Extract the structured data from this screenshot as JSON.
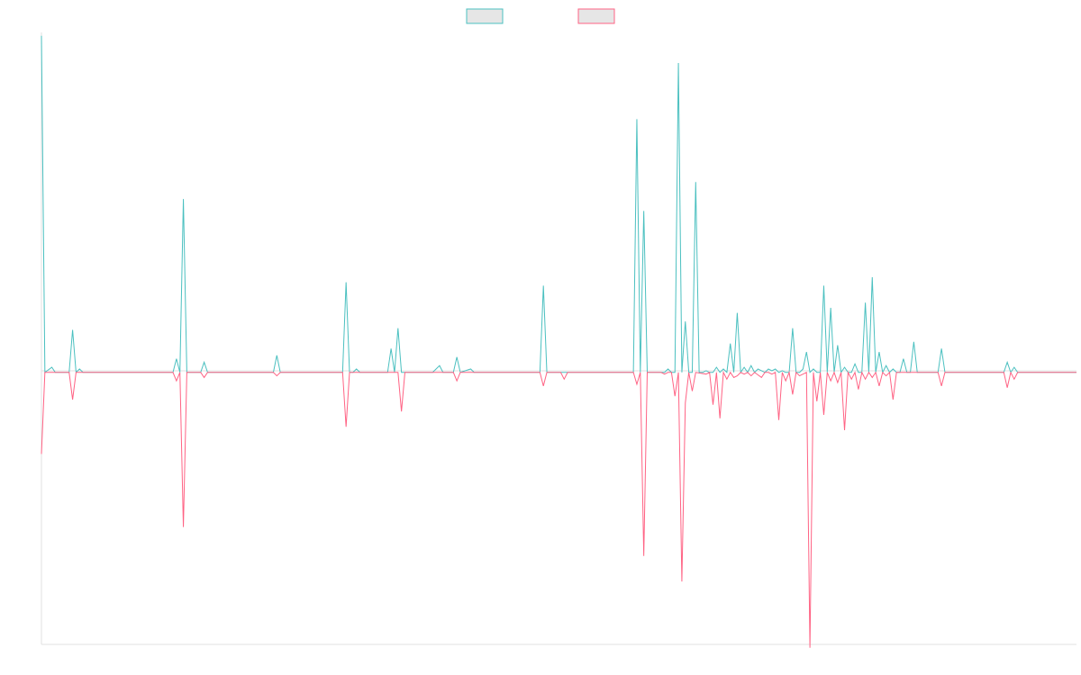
{
  "chart_data": {
    "type": "line",
    "title": "",
    "xlabel": "",
    "ylabel": "",
    "grid": false,
    "legend": "top-center",
    "x_count": 300,
    "ylim": [
      -1.6,
      2.0
    ],
    "series": [
      {
        "color": "#4bc0c0",
        "fill": "#e6e6e6",
        "points": [
          [
            0,
            1.98
          ],
          [
            1,
            0
          ],
          [
            3,
            0.03
          ],
          [
            4,
            0
          ],
          [
            8,
            0
          ],
          [
            9,
            0.25
          ],
          [
            10,
            0
          ],
          [
            11,
            0.02
          ],
          [
            12,
            0
          ],
          [
            38,
            0
          ],
          [
            39,
            0.08
          ],
          [
            40,
            0
          ],
          [
            41,
            1.02
          ],
          [
            42,
            0
          ],
          [
            46,
            0
          ],
          [
            47,
            0.06
          ],
          [
            48,
            0
          ],
          [
            67,
            0
          ],
          [
            68,
            0.1
          ],
          [
            69,
            0
          ],
          [
            87,
            0
          ],
          [
            88,
            0.53
          ],
          [
            89,
            0
          ],
          [
            90,
            0
          ],
          [
            91,
            0.02
          ],
          [
            92,
            0
          ],
          [
            100,
            0
          ],
          [
            101,
            0.14
          ],
          [
            102,
            0
          ],
          [
            103,
            0.26
          ],
          [
            104,
            0
          ],
          [
            113,
            0
          ],
          [
            114,
            0.02
          ],
          [
            115,
            0.04
          ],
          [
            116,
            0
          ],
          [
            119,
            0
          ],
          [
            120,
            0.09
          ],
          [
            121,
            0
          ],
          [
            124,
            0.02
          ],
          [
            125,
            0
          ],
          [
            127,
            0
          ],
          [
            128,
            0
          ],
          [
            144,
            0
          ],
          [
            145,
            0.51
          ],
          [
            146,
            0
          ],
          [
            171,
            0
          ],
          [
            172,
            1.49
          ],
          [
            173,
            0
          ],
          [
            174,
            0.95
          ],
          [
            175,
            0
          ],
          [
            180,
            0
          ],
          [
            181,
            0.02
          ],
          [
            182,
            0
          ],
          [
            183,
            0
          ],
          [
            184,
            1.82
          ],
          [
            185,
            0
          ],
          [
            186,
            0.3
          ],
          [
            187,
            0
          ],
          [
            188,
            0
          ],
          [
            189,
            1.12
          ],
          [
            190,
            0
          ],
          [
            191,
            0
          ],
          [
            192,
            0.01
          ],
          [
            193,
            0
          ],
          [
            194,
            0
          ],
          [
            195,
            0.03
          ],
          [
            196,
            0
          ],
          [
            197,
            0.02
          ],
          [
            198,
            0
          ],
          [
            199,
            0.17
          ],
          [
            200,
            0
          ],
          [
            201,
            0.35
          ],
          [
            202,
            0
          ],
          [
            203,
            0.03
          ],
          [
            204,
            0
          ],
          [
            205,
            0.04
          ],
          [
            206,
            0
          ],
          [
            207,
            0.02
          ],
          [
            208,
            0.01
          ],
          [
            209,
            0
          ],
          [
            210,
            0.02
          ],
          [
            211,
            0.01
          ],
          [
            212,
            0.02
          ],
          [
            213,
            0
          ],
          [
            214,
            0.01
          ],
          [
            215,
            0
          ],
          [
            216,
            0
          ],
          [
            217,
            0.26
          ],
          [
            218,
            0
          ],
          [
            219,
            0
          ],
          [
            220,
            0.02
          ],
          [
            221,
            0.12
          ],
          [
            222,
            0
          ],
          [
            223,
            0.02
          ],
          [
            224,
            0
          ],
          [
            225,
            0
          ],
          [
            226,
            0.51
          ],
          [
            227,
            0
          ],
          [
            228,
            0.38
          ],
          [
            229,
            0
          ],
          [
            230,
            0.16
          ],
          [
            231,
            0
          ],
          [
            232,
            0.03
          ],
          [
            233,
            0
          ],
          [
            234,
            0
          ],
          [
            235,
            0.05
          ],
          [
            236,
            0
          ],
          [
            237,
            0
          ],
          [
            238,
            0.41
          ],
          [
            239,
            0
          ],
          [
            240,
            0.56
          ],
          [
            241,
            0
          ],
          [
            242,
            0.12
          ],
          [
            243,
            0
          ],
          [
            244,
            0.04
          ],
          [
            245,
            0
          ],
          [
            246,
            0.02
          ],
          [
            247,
            0
          ],
          [
            248,
            0
          ],
          [
            249,
            0.08
          ],
          [
            250,
            0
          ],
          [
            251,
            0
          ],
          [
            252,
            0.18
          ],
          [
            253,
            0
          ],
          [
            254,
            0
          ],
          [
            259,
            0
          ],
          [
            260,
            0.14
          ],
          [
            261,
            0
          ],
          [
            278,
            0
          ],
          [
            279,
            0.06
          ],
          [
            280,
            0
          ],
          [
            281,
            0.03
          ],
          [
            282,
            0
          ],
          [
            299,
            0
          ]
        ]
      },
      {
        "color": "#ff6384",
        "fill": "#e6e6e6",
        "points": [
          [
            0,
            -0.48
          ],
          [
            1,
            0
          ],
          [
            8,
            0
          ],
          [
            9,
            -0.16
          ],
          [
            10,
            0
          ],
          [
            38,
            0
          ],
          [
            39,
            -0.05
          ],
          [
            40,
            0
          ],
          [
            41,
            -0.91
          ],
          [
            42,
            0
          ],
          [
            46,
            0
          ],
          [
            47,
            -0.03
          ],
          [
            48,
            0
          ],
          [
            67,
            0
          ],
          [
            68,
            -0.02
          ],
          [
            69,
            0
          ],
          [
            87,
            0
          ],
          [
            88,
            -0.32
          ],
          [
            89,
            0
          ],
          [
            103,
            0
          ],
          [
            104,
            -0.23
          ],
          [
            105,
            0
          ],
          [
            119,
            0
          ],
          [
            120,
            -0.05
          ],
          [
            121,
            0
          ],
          [
            144,
            0
          ],
          [
            145,
            -0.08
          ],
          [
            146,
            0
          ],
          [
            150,
            0
          ],
          [
            151,
            -0.04
          ],
          [
            152,
            0
          ],
          [
            171,
            0
          ],
          [
            172,
            -0.07
          ],
          [
            173,
            0
          ],
          [
            174,
            -1.08
          ],
          [
            175,
            0
          ],
          [
            179,
            0
          ],
          [
            180,
            -0.01
          ],
          [
            181,
            0
          ],
          [
            182,
            0
          ],
          [
            183,
            -0.14
          ],
          [
            184,
            0
          ],
          [
            185,
            -1.23
          ],
          [
            186,
            -0.18
          ],
          [
            187,
            0
          ],
          [
            188,
            -0.11
          ],
          [
            189,
            0
          ],
          [
            192,
            -0.01
          ],
          [
            193,
            0
          ],
          [
            194,
            -0.19
          ],
          [
            195,
            0
          ],
          [
            196,
            -0.27
          ],
          [
            197,
            0
          ],
          [
            198,
            -0.04
          ],
          [
            199,
            0
          ],
          [
            200,
            -0.03
          ],
          [
            201,
            -0.02
          ],
          [
            202,
            0
          ],
          [
            203,
            -0.01
          ],
          [
            204,
            0
          ],
          [
            205,
            -0.02
          ],
          [
            206,
            0
          ],
          [
            208,
            -0.03
          ],
          [
            209,
            0
          ],
          [
            210,
            0
          ],
          [
            211,
            -0.01
          ],
          [
            212,
            0
          ],
          [
            213,
            -0.28
          ],
          [
            214,
            0
          ],
          [
            215,
            -0.05
          ],
          [
            216,
            0
          ],
          [
            217,
            -0.13
          ],
          [
            218,
            0
          ],
          [
            219,
            -0.02
          ],
          [
            220,
            -0.01
          ],
          [
            221,
            0
          ],
          [
            222,
            -1.62
          ],
          [
            223,
            0
          ],
          [
            224,
            -0.17
          ],
          [
            225,
            0
          ],
          [
            226,
            -0.25
          ],
          [
            227,
            0
          ],
          [
            228,
            -0.05
          ],
          [
            229,
            0
          ],
          [
            230,
            -0.06
          ],
          [
            231,
            0
          ],
          [
            232,
            -0.34
          ],
          [
            233,
            0
          ],
          [
            234,
            -0.04
          ],
          [
            235,
            0
          ],
          [
            236,
            -0.1
          ],
          [
            237,
            0
          ],
          [
            238,
            -0.04
          ],
          [
            239,
            0
          ],
          [
            240,
            -0.03
          ],
          [
            241,
            0
          ],
          [
            242,
            -0.08
          ],
          [
            243,
            0
          ],
          [
            244,
            -0.02
          ],
          [
            245,
            0
          ],
          [
            246,
            -0.16
          ],
          [
            247,
            0
          ],
          [
            259,
            0
          ],
          [
            260,
            -0.08
          ],
          [
            261,
            0
          ],
          [
            278,
            0
          ],
          [
            279,
            -0.09
          ],
          [
            280,
            0
          ],
          [
            281,
            -0.04
          ],
          [
            282,
            0
          ],
          [
            299,
            0
          ]
        ]
      }
    ]
  }
}
